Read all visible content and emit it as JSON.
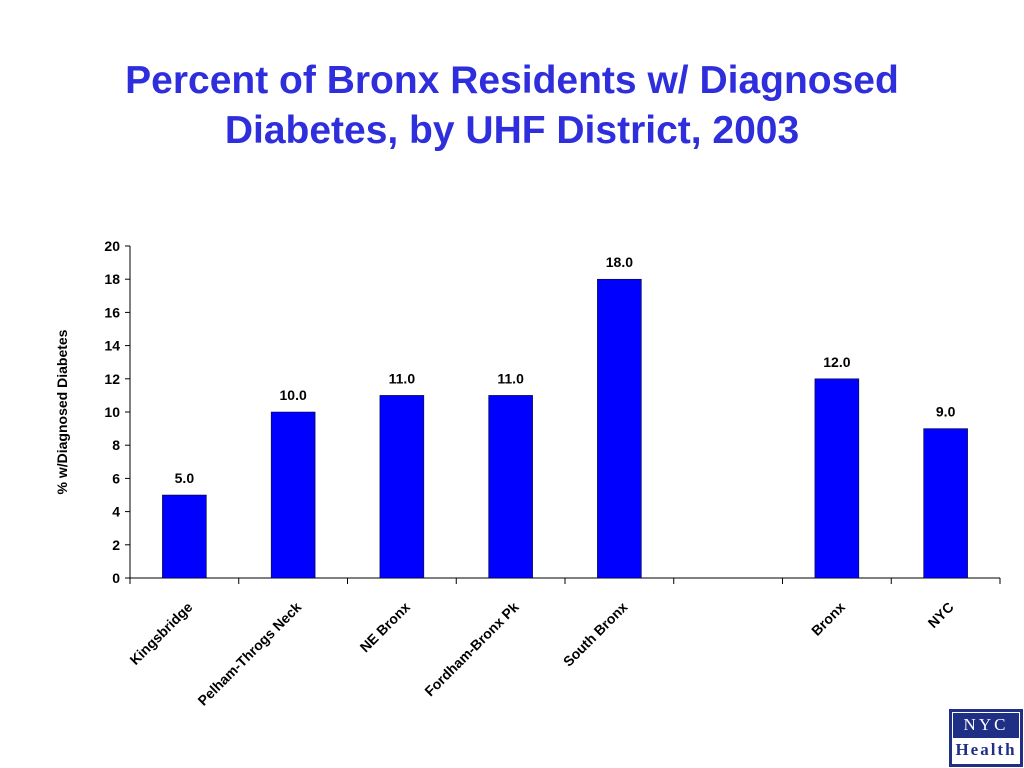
{
  "title": {
    "line1": "Percent of Bronx Residents w/ Diagnosed",
    "line2": "Diabetes, by UHF District, 2003"
  },
  "logo": {
    "top": "NYC",
    "bottom": "Health"
  },
  "colors": {
    "title": "#2E2EDC",
    "bar": "#0000FF",
    "text": "#000000"
  },
  "chart_data": {
    "type": "bar",
    "title": "Percent of Bronx Residents w/ Diagnosed Diabetes, by UHF District, 2003",
    "xlabel": "",
    "ylabel": "% w/Diagnosed Diabetes",
    "categories": [
      "Kingsbridge",
      "Pelham-Throgs Neck",
      "NE Bronx",
      "Fordham-Bronx Pk",
      "South Bronx",
      "",
      "Bronx",
      "NYC"
    ],
    "values": [
      5.0,
      10.0,
      11.0,
      11.0,
      18.0,
      null,
      12.0,
      9.0
    ],
    "data_labels": [
      "5.0",
      "10.0",
      "11.0",
      "11.0",
      "18.0",
      "",
      "12.0",
      "9.0"
    ],
    "ylim": [
      0,
      20
    ],
    "yticks": [
      "0",
      "2",
      "4",
      "6",
      "8",
      "10",
      "12",
      "14",
      "16",
      "18",
      "20"
    ],
    "grid": false,
    "legend": "none"
  }
}
